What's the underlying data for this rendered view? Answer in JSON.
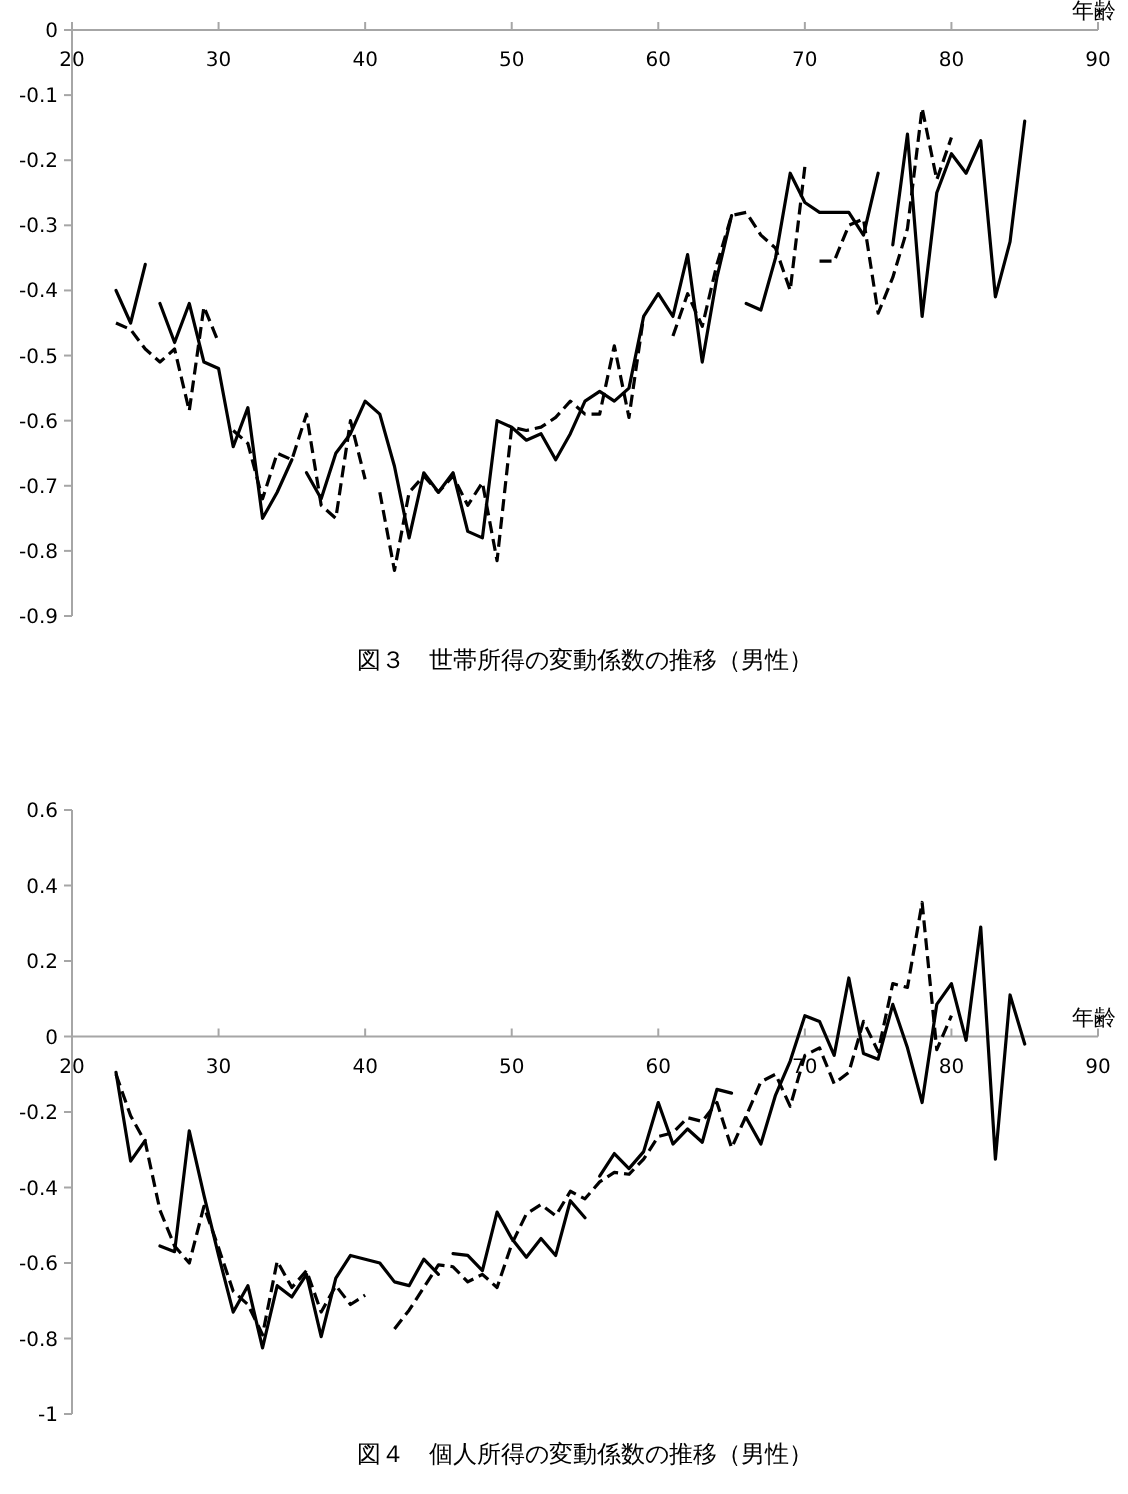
{
  "chart_data": [
    {
      "type": "line",
      "title": "図３　世帯所得の変動係数の推移（男性）",
      "xlabel": "年齢",
      "xlim": [
        20,
        90
      ],
      "xticks": [
        20,
        30,
        40,
        50,
        60,
        70,
        80,
        90
      ],
      "ylim": [
        -0.9,
        0
      ],
      "yticks": [
        0,
        -0.1,
        -0.2,
        -0.3,
        -0.4,
        -0.5,
        -0.6,
        -0.7,
        -0.8,
        -0.9
      ],
      "grid": false,
      "series": [
        {
          "color": "#000000",
          "line_style": "solid",
          "x": [
            23,
            24,
            25
          ],
          "values": [
            -0.4,
            -0.45,
            -0.36
          ]
        },
        {
          "color": "#000000",
          "line_style": "solid",
          "x": [
            26,
            27,
            28,
            29,
            30,
            31,
            32,
            33,
            34,
            35
          ],
          "values": [
            -0.42,
            -0.48,
            -0.42,
            -0.51,
            -0.52,
            -0.64,
            -0.58,
            -0.75,
            -0.71,
            -0.66
          ]
        },
        {
          "color": "#000000",
          "line_style": "solid",
          "x": [
            36,
            37,
            38,
            39,
            40,
            41,
            42,
            43,
            44,
            45,
            46,
            47,
            48,
            49,
            50,
            51,
            52,
            53,
            54,
            55,
            56,
            57,
            58,
            59,
            60,
            61,
            62,
            63,
            64,
            65
          ],
          "values": [
            -0.68,
            -0.72,
            -0.65,
            -0.62,
            -0.57,
            -0.59,
            -0.67,
            -0.78,
            -0.68,
            -0.71,
            -0.68,
            -0.77,
            -0.78,
            -0.6,
            -0.61,
            -0.63,
            -0.62,
            -0.66,
            -0.62,
            -0.57,
            -0.555,
            -0.57,
            -0.55,
            -0.44,
            -0.405,
            -0.44,
            -0.345,
            -0.51,
            -0.38,
            -0.285
          ]
        },
        {
          "color": "#000000",
          "line_style": "solid",
          "x": [
            66,
            67,
            68,
            69,
            70,
            71,
            72,
            73,
            74,
            75
          ],
          "values": [
            -0.42,
            -0.43,
            -0.35,
            -0.22,
            -0.265,
            -0.28,
            -0.28,
            -0.28,
            -0.315,
            -0.22
          ]
        },
        {
          "color": "#000000",
          "line_style": "solid",
          "x": [
            76,
            77,
            78,
            79,
            80,
            81,
            82,
            83,
            84,
            85
          ],
          "values": [
            -0.33,
            -0.16,
            -0.44,
            -0.25,
            -0.19,
            -0.22,
            -0.17,
            -0.41,
            -0.325,
            -0.14
          ]
        },
        {
          "color": "#000000",
          "line_style": "dashed",
          "x": [
            23,
            24,
            25,
            26,
            27,
            28,
            29,
            30
          ],
          "values": [
            -0.45,
            -0.46,
            -0.49,
            -0.51,
            -0.49,
            -0.585,
            -0.425,
            -0.48
          ]
        },
        {
          "color": "#000000",
          "line_style": "dashed",
          "x": [
            31,
            32,
            33,
            34,
            35,
            36,
            37,
            38,
            39,
            40
          ],
          "values": [
            -0.615,
            -0.635,
            -0.72,
            -0.65,
            -0.66,
            -0.59,
            -0.73,
            -0.75,
            -0.6,
            -0.69
          ]
        },
        {
          "color": "#000000",
          "line_style": "dashed",
          "x": [
            41,
            42,
            43,
            44,
            45,
            46,
            47,
            48,
            49,
            50,
            51,
            52,
            53,
            54,
            55,
            56,
            57,
            58,
            59
          ],
          "values": [
            -0.71,
            -0.83,
            -0.71,
            -0.685,
            -0.71,
            -0.685,
            -0.73,
            -0.695,
            -0.815,
            -0.61,
            -0.615,
            -0.61,
            -0.595,
            -0.57,
            -0.59,
            -0.59,
            -0.485,
            -0.595,
            -0.44
          ]
        },
        {
          "color": "#000000",
          "line_style": "dashed",
          "x": [
            61,
            62,
            63,
            64,
            65,
            66,
            67,
            68,
            69,
            70
          ],
          "values": [
            -0.47,
            -0.405,
            -0.455,
            -0.36,
            -0.285,
            -0.28,
            -0.315,
            -0.335,
            -0.4,
            -0.21
          ]
        },
        {
          "color": "#000000",
          "line_style": "dashed",
          "x": [
            71,
            72,
            73,
            74,
            75,
            76,
            77,
            78,
            79,
            80
          ],
          "values": [
            -0.355,
            -0.355,
            -0.3,
            -0.29,
            -0.435,
            -0.38,
            -0.305,
            -0.12,
            -0.23,
            -0.165
          ]
        }
      ]
    },
    {
      "type": "line",
      "title": "図４　個人所得の変動係数の推移（男性）",
      "xlabel": "年齢",
      "xlim": [
        20,
        90
      ],
      "xticks": [
        20,
        30,
        40,
        50,
        60,
        70,
        80,
        90
      ],
      "ylim": [
        -1,
        0.6
      ],
      "yticks": [
        0.6,
        0.4,
        0.2,
        0,
        -0.2,
        -0.4,
        -0.6,
        -0.8,
        -1
      ],
      "grid": false,
      "series": [
        {
          "color": "#000000",
          "line_style": "solid",
          "x": [
            23,
            24,
            25
          ],
          "values": [
            -0.095,
            -0.33,
            -0.275
          ]
        },
        {
          "color": "#000000",
          "line_style": "solid",
          "x": [
            26,
            27,
            28,
            29,
            30,
            31,
            32,
            33,
            34,
            35,
            36,
            37,
            38,
            39,
            40,
            41,
            42,
            43,
            44,
            45
          ],
          "values": [
            -0.555,
            -0.57,
            -0.25,
            -0.42,
            -0.58,
            -0.73,
            -0.66,
            -0.825,
            -0.66,
            -0.69,
            -0.63,
            -0.795,
            -0.64,
            -0.58,
            -0.59,
            -0.6,
            -0.65,
            -0.66,
            -0.59,
            -0.63
          ]
        },
        {
          "color": "#000000",
          "line_style": "solid",
          "x": [
            46,
            47,
            48,
            49,
            50,
            51,
            52,
            53,
            54,
            55
          ],
          "values": [
            -0.575,
            -0.58,
            -0.62,
            -0.465,
            -0.535,
            -0.585,
            -0.535,
            -0.58,
            -0.435,
            -0.48
          ]
        },
        {
          "color": "#000000",
          "line_style": "solid",
          "x": [
            56,
            57,
            58,
            59,
            60,
            61,
            62,
            63,
            64,
            65
          ],
          "values": [
            -0.37,
            -0.31,
            -0.35,
            -0.305,
            -0.175,
            -0.285,
            -0.245,
            -0.28,
            -0.14,
            -0.15
          ]
        },
        {
          "color": "#000000",
          "line_style": "solid",
          "x": [
            66,
            67,
            68,
            69,
            70,
            71,
            72,
            73,
            74,
            75,
            76,
            77,
            78,
            79,
            80,
            81,
            82,
            83,
            84,
            85
          ],
          "values": [
            -0.215,
            -0.285,
            -0.155,
            -0.065,
            0.055,
            0.04,
            -0.05,
            0.155,
            -0.045,
            -0.06,
            0.085,
            -0.03,
            -0.175,
            0.085,
            0.14,
            -0.01,
            0.29,
            -0.325,
            0.11,
            -0.02
          ]
        },
        {
          "color": "#000000",
          "line_style": "dashed",
          "x": [
            23,
            24,
            25,
            26,
            27,
            28,
            29,
            30,
            31,
            32,
            33,
            34,
            35,
            36,
            37,
            38,
            39,
            40
          ],
          "values": [
            -0.1,
            -0.21,
            -0.28,
            -0.46,
            -0.555,
            -0.6,
            -0.45,
            -0.56,
            -0.675,
            -0.71,
            -0.79,
            -0.595,
            -0.665,
            -0.62,
            -0.73,
            -0.66,
            -0.71,
            -0.685
          ]
        },
        {
          "color": "#000000",
          "line_style": "dashed",
          "x": [
            42,
            43,
            44,
            45,
            46,
            47,
            48,
            49,
            50,
            51,
            52,
            53,
            54,
            55,
            56,
            57,
            58,
            59,
            60,
            61,
            62,
            63,
            64,
            65,
            66,
            67,
            68,
            69,
            70,
            71,
            72,
            73,
            74,
            75,
            76,
            77,
            78,
            79,
            80
          ],
          "values": [
            -0.775,
            -0.725,
            -0.665,
            -0.605,
            -0.61,
            -0.65,
            -0.63,
            -0.665,
            -0.55,
            -0.47,
            -0.445,
            -0.475,
            -0.41,
            -0.43,
            -0.385,
            -0.36,
            -0.365,
            -0.325,
            -0.265,
            -0.255,
            -0.215,
            -0.225,
            -0.175,
            -0.295,
            -0.21,
            -0.12,
            -0.1,
            -0.185,
            -0.05,
            -0.03,
            -0.125,
            -0.095,
            0.04,
            -0.04,
            0.14,
            0.13,
            0.355,
            -0.035,
            0.055
          ]
        }
      ]
    }
  ]
}
